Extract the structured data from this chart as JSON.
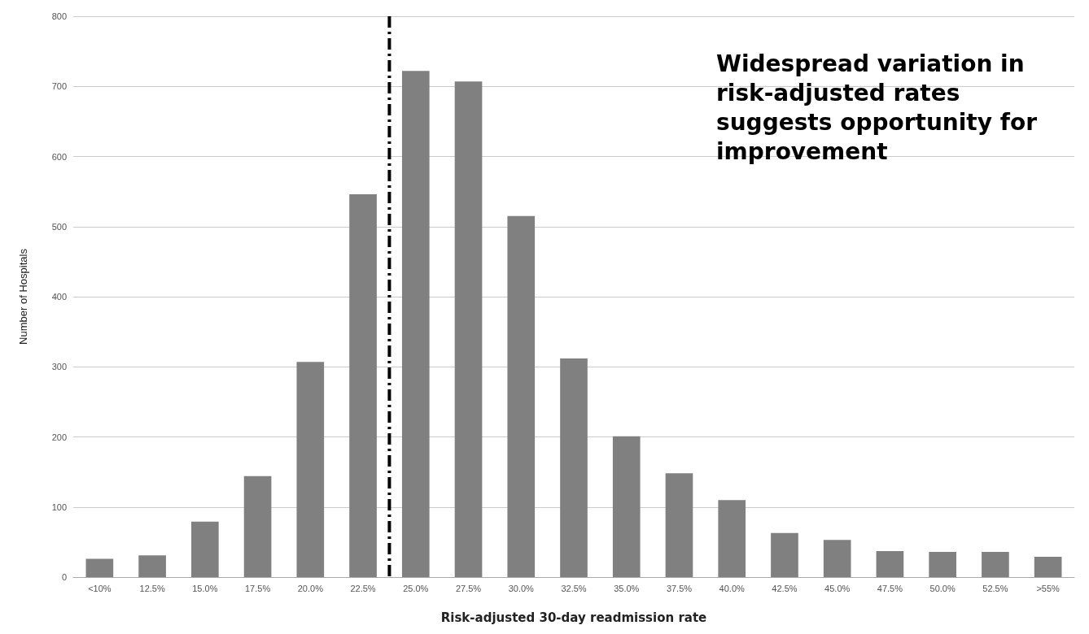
{
  "chart_data": {
    "type": "bar",
    "xlabel": "Risk-adjusted 30-day readmission rate",
    "ylabel": "Number of Hospitals",
    "categories": [
      "<10%",
      "12.5%",
      "15.0%",
      "17.5%",
      "20.0%",
      "22.5%",
      "25.0%",
      "27.5%",
      "30.0%",
      "32.5%",
      "35.0%",
      "37.5%",
      "40.0%",
      "42.5%",
      "45.0%",
      "47.5%",
      "50.0%",
      "52.5%",
      ">55%"
    ],
    "values": [
      26,
      31,
      79,
      144,
      307,
      546,
      722,
      707,
      515,
      312,
      201,
      148,
      110,
      63,
      53,
      37,
      36,
      36,
      29
    ],
    "color": "#808080",
    "ylim": [
      0,
      800
    ],
    "yticks": [
      0,
      100,
      200,
      300,
      400,
      500,
      600,
      700,
      800
    ],
    "grid": "y",
    "ref_lines": [
      {
        "axis": "x",
        "value": "25.0%",
        "color": "#000000",
        "line_style": "dashed"
      }
    ],
    "annotations": [
      "Widespread variation in risk-adjusted rates suggests opportunity for improvement"
    ]
  }
}
